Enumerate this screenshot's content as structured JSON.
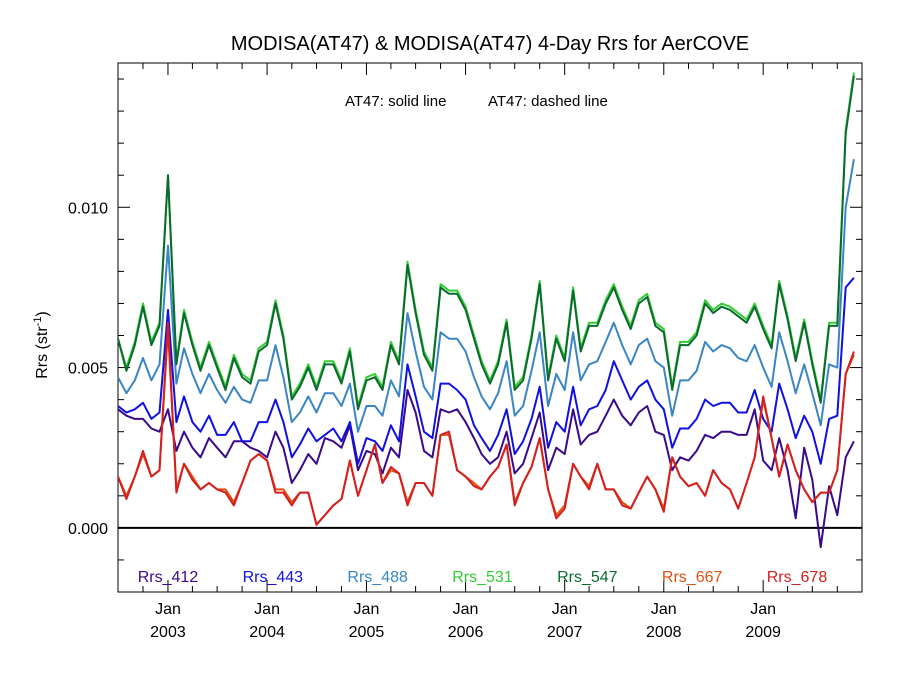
{
  "chart_data": {
    "type": "line",
    "title": "MODISA(AT47) & MODISA(AT47) 4-Day Rrs for AerCOVE",
    "ylabel": "Rrs (str",
    "ylabel_sup": "-1",
    "ylabel_close": ")",
    "annotation_solid": "AT47: solid line",
    "annotation_dashed": "AT47: dashed line",
    "xlim": [
      "2002-07-01",
      "2009-12-31"
    ],
    "ylim": [
      -0.002,
      0.0145
    ],
    "yticks": [
      0.0,
      0.005,
      0.01
    ],
    "ytick_labels": [
      "0.000",
      "0.005",
      "0.010"
    ],
    "x_ticks": [
      {
        "date": "2003-01-01",
        "month": "Jan",
        "year": "2003"
      },
      {
        "date": "2004-01-01",
        "month": "Jan",
        "year": "2004"
      },
      {
        "date": "2005-01-01",
        "month": "Jan",
        "year": "2005"
      },
      {
        "date": "2006-01-01",
        "month": "Jan",
        "year": "2006"
      },
      {
        "date": "2007-01-01",
        "month": "Jan",
        "year": "2007"
      },
      {
        "date": "2008-01-01",
        "month": "Jan",
        "year": "2008"
      },
      {
        "date": "2009-01-01",
        "month": "Jan",
        "year": "2009"
      }
    ],
    "zero_line": 0.0,
    "x": [
      "2002-07-01",
      "2002-08-01",
      "2002-09-01",
      "2002-10-01",
      "2002-11-01",
      "2002-12-01",
      "2003-01-01",
      "2003-02-01",
      "2003-03-01",
      "2003-04-01",
      "2003-05-01",
      "2003-06-01",
      "2003-07-01",
      "2003-08-01",
      "2003-09-01",
      "2003-10-01",
      "2003-11-01",
      "2003-12-01",
      "2004-01-01",
      "2004-02-01",
      "2004-03-01",
      "2004-04-01",
      "2004-05-01",
      "2004-06-01",
      "2004-07-01",
      "2004-08-01",
      "2004-09-01",
      "2004-10-01",
      "2004-11-01",
      "2004-12-01",
      "2005-01-01",
      "2005-02-01",
      "2005-03-01",
      "2005-04-01",
      "2005-05-01",
      "2005-06-01",
      "2005-07-01",
      "2005-08-01",
      "2005-09-01",
      "2005-10-01",
      "2005-11-01",
      "2005-12-01",
      "2006-01-01",
      "2006-02-01",
      "2006-03-01",
      "2006-04-01",
      "2006-05-01",
      "2006-06-01",
      "2006-07-01",
      "2006-08-01",
      "2006-09-01",
      "2006-10-01",
      "2006-11-01",
      "2006-12-01",
      "2007-01-01",
      "2007-02-01",
      "2007-03-01",
      "2007-04-01",
      "2007-05-01",
      "2007-06-01",
      "2007-07-01",
      "2007-08-01",
      "2007-09-01",
      "2007-10-01",
      "2007-11-01",
      "2007-12-01",
      "2008-01-01",
      "2008-02-01",
      "2008-03-01",
      "2008-04-01",
      "2008-05-01",
      "2008-06-01",
      "2008-07-01",
      "2008-08-01",
      "2008-09-01",
      "2008-10-01",
      "2008-11-01",
      "2008-12-01",
      "2009-01-01",
      "2009-02-01",
      "2009-03-01",
      "2009-04-01",
      "2009-05-01",
      "2009-06-01",
      "2009-07-01",
      "2009-08-01",
      "2009-09-01",
      "2009-10-01",
      "2009-11-01",
      "2009-12-01"
    ],
    "series": [
      {
        "name": "Rrs_412",
        "color": "#3a0a8a",
        "values": [
          0.0037,
          0.0035,
          0.0034,
          0.0034,
          0.0031,
          0.003,
          0.0037,
          0.0024,
          0.003,
          0.0025,
          0.0022,
          0.0028,
          0.0025,
          0.0022,
          0.0027,
          0.0027,
          0.0025,
          0.0024,
          0.0022,
          0.003,
          0.0025,
          0.0014,
          0.0018,
          0.0023,
          0.002,
          0.0028,
          0.0027,
          0.0025,
          0.0032,
          0.0018,
          0.0024,
          0.0023,
          0.0017,
          0.0025,
          0.0022,
          0.0043,
          0.0036,
          0.0024,
          0.0022,
          0.0037,
          0.0036,
          0.0037,
          0.0033,
          0.0028,
          0.0023,
          0.002,
          0.0022,
          0.003,
          0.0017,
          0.002,
          0.0028,
          0.0036,
          0.0018,
          0.0025,
          0.0023,
          0.0037,
          0.0026,
          0.0029,
          0.003,
          0.0035,
          0.004,
          0.0035,
          0.0032,
          0.0036,
          0.0038,
          0.003,
          0.0029,
          0.0018,
          0.0022,
          0.0021,
          0.0024,
          0.0029,
          0.0028,
          0.003,
          0.003,
          0.0029,
          0.0029,
          0.0037,
          0.0021,
          0.0018,
          0.0028,
          0.0018,
          0.0003,
          0.0025,
          0.0015,
          -0.0006,
          0.0013,
          0.0004,
          0.0022,
          0.0027
        ]
      },
      {
        "name": "Rrs_443",
        "color": "#1010e0",
        "values": [
          0.0038,
          0.0036,
          0.0037,
          0.0039,
          0.0034,
          0.0036,
          0.0068,
          0.0033,
          0.0041,
          0.0033,
          0.003,
          0.0035,
          0.0029,
          0.0029,
          0.0033,
          0.0027,
          0.0027,
          0.0033,
          0.0033,
          0.004,
          0.0033,
          0.0022,
          0.0026,
          0.0031,
          0.0027,
          0.0029,
          0.0031,
          0.0027,
          0.0033,
          0.002,
          0.0028,
          0.0027,
          0.0024,
          0.0032,
          0.0027,
          0.0051,
          0.0041,
          0.003,
          0.0028,
          0.0045,
          0.0045,
          0.0043,
          0.004,
          0.0032,
          0.0028,
          0.0024,
          0.0029,
          0.0037,
          0.0023,
          0.0027,
          0.0034,
          0.0044,
          0.0025,
          0.0033,
          0.003,
          0.0044,
          0.0032,
          0.0037,
          0.0038,
          0.0043,
          0.0052,
          0.0046,
          0.004,
          0.0044,
          0.0046,
          0.004,
          0.0037,
          0.0025,
          0.0031,
          0.0031,
          0.0034,
          0.004,
          0.0038,
          0.0039,
          0.0039,
          0.0036,
          0.0036,
          0.0043,
          0.0034,
          0.003,
          0.0045,
          0.0037,
          0.0028,
          0.0035,
          0.003,
          0.002,
          0.0034,
          0.0035,
          0.0075,
          0.0078
        ]
      },
      {
        "name": "Rrs_488",
        "color": "#3a86c4",
        "values": [
          0.0047,
          0.0042,
          0.0046,
          0.0053,
          0.0046,
          0.0051,
          0.0088,
          0.0045,
          0.0056,
          0.0048,
          0.0042,
          0.0048,
          0.0043,
          0.0039,
          0.0044,
          0.004,
          0.0039,
          0.0046,
          0.0046,
          0.0057,
          0.0047,
          0.0033,
          0.0036,
          0.0041,
          0.0036,
          0.0042,
          0.0042,
          0.0038,
          0.0045,
          0.003,
          0.0038,
          0.0038,
          0.0035,
          0.0046,
          0.0041,
          0.0067,
          0.0055,
          0.0044,
          0.004,
          0.0061,
          0.0059,
          0.0059,
          0.0055,
          0.0047,
          0.0041,
          0.0037,
          0.0042,
          0.0052,
          0.0035,
          0.0038,
          0.0049,
          0.0061,
          0.0038,
          0.0048,
          0.0043,
          0.0061,
          0.0046,
          0.0051,
          0.0052,
          0.0058,
          0.0064,
          0.0057,
          0.0051,
          0.0057,
          0.0059,
          0.0052,
          0.005,
          0.0035,
          0.0046,
          0.0046,
          0.0049,
          0.0058,
          0.0055,
          0.0057,
          0.0056,
          0.0053,
          0.0052,
          0.0057,
          0.005,
          0.0044,
          0.0061,
          0.0052,
          0.0042,
          0.0051,
          0.0042,
          0.0032,
          0.0051,
          0.005,
          0.01,
          0.0115
        ]
      },
      {
        "name": "Rrs_531",
        "color": "#33cc33",
        "values": [
          0.0059,
          0.005,
          0.0058,
          0.007,
          0.0058,
          0.0064,
          0.011,
          0.0052,
          0.0068,
          0.0058,
          0.005,
          0.0058,
          0.0051,
          0.0044,
          0.0054,
          0.0048,
          0.0046,
          0.0056,
          0.0058,
          0.0071,
          0.006,
          0.0041,
          0.0045,
          0.0051,
          0.0044,
          0.0052,
          0.0052,
          0.0046,
          0.0056,
          0.0038,
          0.0047,
          0.0048,
          0.0044,
          0.0058,
          0.0052,
          0.0083,
          0.0068,
          0.0055,
          0.005,
          0.0076,
          0.0074,
          0.0074,
          0.0069,
          0.006,
          0.0052,
          0.0046,
          0.0052,
          0.0065,
          0.0044,
          0.0047,
          0.006,
          0.0077,
          0.0047,
          0.006,
          0.0053,
          0.0075,
          0.0056,
          0.0064,
          0.0064,
          0.0071,
          0.0076,
          0.0069,
          0.0063,
          0.0071,
          0.0073,
          0.0064,
          0.0062,
          0.0044,
          0.0058,
          0.0058,
          0.0061,
          0.0071,
          0.0068,
          0.007,
          0.0069,
          0.0067,
          0.0065,
          0.007,
          0.0063,
          0.0057,
          0.0077,
          0.0066,
          0.0053,
          0.0065,
          0.0052,
          0.004,
          0.0064,
          0.0064,
          0.0124,
          0.0142
        ]
      },
      {
        "name": "Rrs_547",
        "color": "#0b6b2e",
        "values": [
          0.0059,
          0.0049,
          0.0057,
          0.0069,
          0.0057,
          0.0063,
          0.011,
          0.0051,
          0.0067,
          0.0057,
          0.0049,
          0.0057,
          0.005,
          0.0043,
          0.0053,
          0.0047,
          0.0045,
          0.0055,
          0.0057,
          0.007,
          0.0059,
          0.004,
          0.0044,
          0.005,
          0.0043,
          0.0051,
          0.0051,
          0.0045,
          0.0055,
          0.0037,
          0.0046,
          0.0047,
          0.0043,
          0.0057,
          0.0051,
          0.0082,
          0.0067,
          0.0054,
          0.0049,
          0.0075,
          0.0073,
          0.0073,
          0.0068,
          0.0059,
          0.0051,
          0.0045,
          0.0051,
          0.0064,
          0.0043,
          0.0046,
          0.0059,
          0.0076,
          0.0046,
          0.0059,
          0.0052,
          0.0074,
          0.0055,
          0.0063,
          0.0063,
          0.007,
          0.0075,
          0.0068,
          0.0062,
          0.007,
          0.0072,
          0.0063,
          0.0061,
          0.0043,
          0.0057,
          0.0057,
          0.006,
          0.007,
          0.0067,
          0.0069,
          0.0068,
          0.0066,
          0.0064,
          0.0069,
          0.0062,
          0.0056,
          0.0076,
          0.0065,
          0.0052,
          0.0064,
          0.0051,
          0.0039,
          0.0063,
          0.0063,
          0.0123,
          0.0141
        ]
      },
      {
        "name": "Rrs_667",
        "color": "#e05010",
        "values": [
          0.0016,
          0.001,
          0.0016,
          0.0023,
          0.0016,
          0.0018,
          0.0062,
          0.0012,
          0.002,
          0.0016,
          0.0012,
          0.0014,
          0.0012,
          0.0012,
          0.0008,
          0.0014,
          0.0021,
          0.0023,
          0.0021,
          0.0012,
          0.0012,
          0.0008,
          0.0011,
          0.0011,
          0.0001,
          0.0004,
          0.0007,
          0.0009,
          0.0021,
          0.001,
          0.0018,
          0.0026,
          0.0014,
          0.0018,
          0.0017,
          0.0008,
          0.0014,
          0.0014,
          0.001,
          0.0029,
          0.0029,
          0.0018,
          0.0016,
          0.0014,
          0.0012,
          0.0016,
          0.0019,
          0.0026,
          0.0008,
          0.0014,
          0.0019,
          0.0028,
          0.0012,
          0.0004,
          0.0007,
          0.002,
          0.0016,
          0.0013,
          0.002,
          0.0012,
          0.0012,
          0.0008,
          0.0006,
          0.0011,
          0.0016,
          0.0012,
          0.0006,
          0.0022,
          0.0016,
          0.0013,
          0.0014,
          0.001,
          0.0018,
          0.0014,
          0.0012,
          0.0006,
          0.0014,
          0.0022,
          0.004,
          0.0028,
          0.0016,
          0.0026,
          0.0018,
          0.0012,
          0.0008,
          0.0011,
          0.0011,
          0.0018,
          0.0048,
          0.0054
        ]
      },
      {
        "name": "Rrs_678",
        "color": "#d42020",
        "values": [
          0.0016,
          0.0009,
          0.0016,
          0.0024,
          0.0016,
          0.0018,
          0.0064,
          0.0011,
          0.002,
          0.0015,
          0.0012,
          0.0014,
          0.0012,
          0.0011,
          0.0007,
          0.0014,
          0.0021,
          0.0023,
          0.0021,
          0.0011,
          0.0011,
          0.0007,
          0.0011,
          0.0011,
          0.0001,
          0.0004,
          0.0007,
          0.0009,
          0.0021,
          0.001,
          0.0018,
          0.0026,
          0.0014,
          0.0019,
          0.0017,
          0.0007,
          0.0014,
          0.0014,
          0.001,
          0.0029,
          0.003,
          0.0018,
          0.0016,
          0.0013,
          0.0012,
          0.0016,
          0.0019,
          0.0026,
          0.0007,
          0.0014,
          0.0019,
          0.0028,
          0.0012,
          0.0003,
          0.0006,
          0.002,
          0.0016,
          0.0012,
          0.002,
          0.0012,
          0.0012,
          0.0007,
          0.0006,
          0.0011,
          0.0016,
          0.0012,
          0.0005,
          0.0022,
          0.0016,
          0.0013,
          0.0014,
          0.001,
          0.0018,
          0.0014,
          0.0012,
          0.0006,
          0.0014,
          0.0022,
          0.0041,
          0.0028,
          0.0016,
          0.0026,
          0.0018,
          0.0012,
          0.0008,
          0.0011,
          0.0011,
          0.0018,
          0.0048,
          0.0055
        ]
      }
    ]
  }
}
